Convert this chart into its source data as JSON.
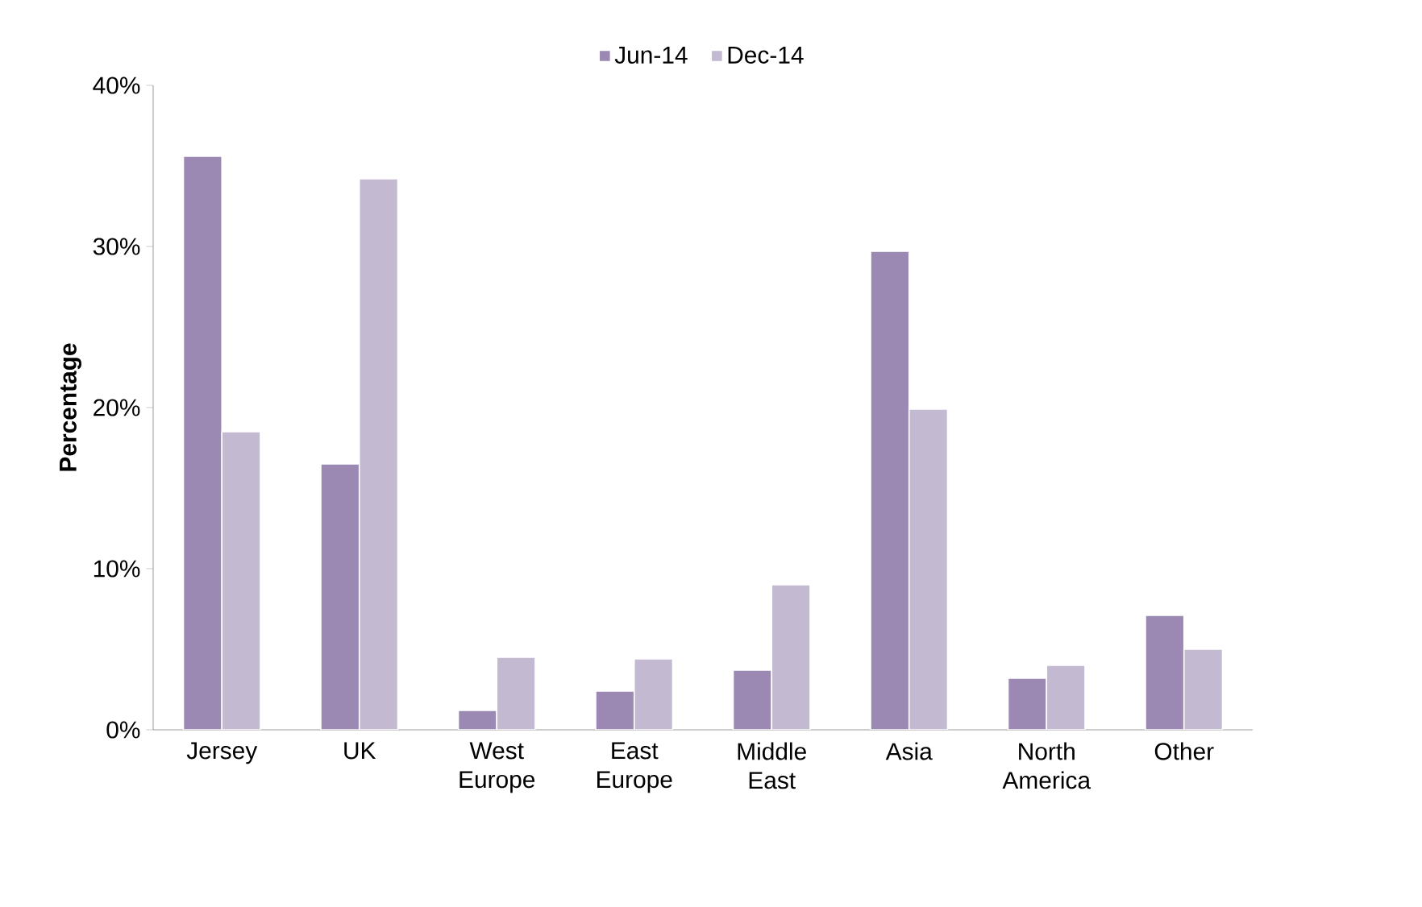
{
  "chart_data": {
    "type": "bar",
    "ylabel": "Percentage",
    "categories": [
      "Jersey",
      "UK",
      "West Europe",
      "East Europe",
      "Middle East",
      "Asia",
      "North America",
      "Other"
    ],
    "series": [
      {
        "name": "Jun-14",
        "color": "#9b89b3",
        "values": [
          35.6,
          16.5,
          1.2,
          2.4,
          3.7,
          29.7,
          3.2,
          7.1
        ]
      },
      {
        "name": "Dec-14",
        "color": "#c3b9d1",
        "values": [
          18.5,
          34.2,
          4.5,
          4.4,
          9.0,
          19.9,
          4.0,
          5.0
        ]
      }
    ],
    "ylim": [
      0,
      40
    ],
    "yticks": [
      {
        "value": 0,
        "label": "0%"
      },
      {
        "value": 10,
        "label": "10%"
      },
      {
        "value": 20,
        "label": "20%"
      },
      {
        "value": 30,
        "label": "30%"
      },
      {
        "value": 40,
        "label": "40%"
      }
    ],
    "grid": false,
    "legend": "top"
  }
}
